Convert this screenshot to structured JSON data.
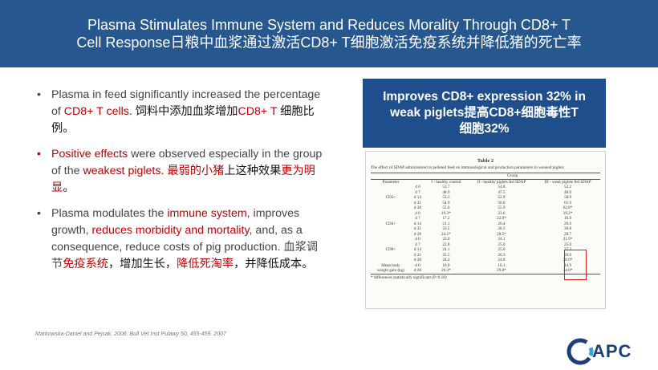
{
  "header": {
    "title_line1": "Plasma Stimulates Immune System and Reduces Morality Through CD8+ T",
    "title_line2": "Cell Response日粮中血浆通过激活CD8+ T细胞激活免疫系统并降低猪的死亡率"
  },
  "bullets": [
    {
      "t1": "Plasma in feed significantly increased the percentage of ",
      "r1": "CD8+ T cells.",
      "t2": " ",
      "cn": "饲料中添加血浆增加",
      "r2": "CD8+ T",
      "t3": " 细胞比例。"
    },
    {
      "r0": "Positive effects",
      "t1": " were observed especially in the group of the ",
      "r1": "weakest piglets.",
      "t2": " ",
      "r2": "最弱的小猪",
      "t3": "上这种效果",
      "r3": "更为明显",
      "t4": "。"
    },
    {
      "t1": "Plasma modulates the ",
      "r1": "immune system",
      "t2": ", improves growth, ",
      "r2": "reduces morbidity and mortality",
      "t3": ", and, as a consequence, reduce costs of pig production. 血浆调节",
      "r3": "免疫系统",
      "t4": "，增加生长，",
      "r4": "降低死淘率",
      "t5": "，并降低成本。"
    }
  ],
  "callout": {
    "line1": "Improves CD8+ expression 32% in",
    "line2": "weak piglets提高CD8+细胞毒性T",
    "line3": "细胞32%"
  },
  "table": {
    "title": "Table 2",
    "caption": "The effect of SDAP administered in pelleted feed on immunological and production parameters in weaned piglets",
    "group_header": "Group",
    "columns": [
      "Parameter",
      "",
      "I - healthy control",
      "II - healthy piglets fed SDAP",
      "III - weak piglets fed SDAP"
    ],
    "rows": [
      [
        "",
        "d 0",
        "53.7",
        "54.8",
        "52.2"
      ],
      [
        "",
        "d 7",
        "48.9",
        "47.5",
        "48.0"
      ],
      [
        "CD2+",
        "d 14",
        "53.3",
        "52.9",
        "58.9"
      ],
      [
        "",
        "d 21",
        "54.9",
        "56.0",
        "61.9"
      ],
      [
        "",
        "d 28",
        "55.0",
        "55.9",
        "62.8*"
      ],
      [
        "",
        "d 0",
        "19.3*",
        "23.6",
        "19.2*"
      ],
      [
        "",
        "d 7",
        "17.2",
        "22.0*",
        "16.9"
      ],
      [
        "CD4+",
        "d 14",
        "21.1",
        "26.4",
        "26.6"
      ],
      [
        "",
        "d 21",
        "23.5",
        "28.3",
        "30.8"
      ],
      [
        "",
        "d 28",
        "24.5*",
        "28.5*",
        "28.7"
      ],
      [
        "",
        "d 0",
        "23.0",
        "24.1",
        "21.9*"
      ],
      [
        "",
        "d 7",
        "22.8",
        "25.0",
        "25.0"
      ],
      [
        "CD8+",
        "d 14",
        "24.1",
        "25.0",
        "27.2"
      ],
      [
        "",
        "d 21",
        "25.5",
        "26.3",
        "29.0"
      ],
      [
        "",
        "d 28",
        "24.4",
        "24.8",
        "28.9*"
      ],
      [
        "Mean body",
        "d 0",
        "16.0",
        "16.1",
        "14.9"
      ],
      [
        "weight gain (kg)",
        "d 28",
        "29.3*",
        "29.0*",
        "34.0*"
      ]
    ],
    "footnote": "* differences statistically significant (P<0.10)"
  },
  "reference": "Markowska-Daniel and Pejsak. 2006. Bull Vet Inst Pulawy 50, 455-459. 2007",
  "logo": {
    "text": "APC"
  },
  "colors": {
    "header_bg": "#27578f",
    "callout_bg": "#1f4e8c",
    "accent_red": "#c00000",
    "logo_blue": "#1d3e78"
  }
}
